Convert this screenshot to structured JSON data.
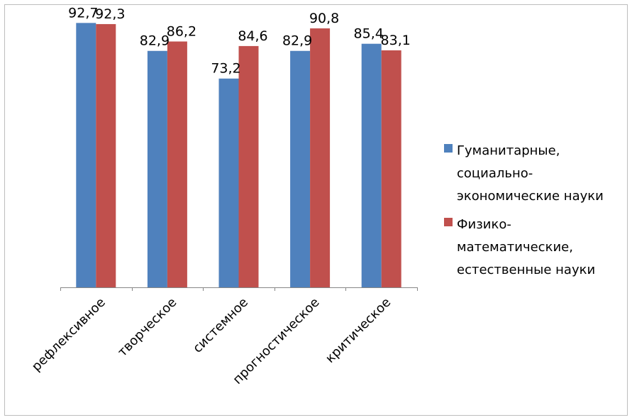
{
  "chart_data": {
    "type": "bar",
    "title": "",
    "xlabel": "",
    "ylabel": "",
    "ylim": [
      0,
      100
    ],
    "grid": false,
    "legend_position": "right",
    "categories": [
      "рефлексивное",
      "творческое",
      "системное",
      "прогностическое",
      "критическое"
    ],
    "series": [
      {
        "name_lines": [
          "Гуманитарные,",
          "социально-",
          "экономические науки"
        ],
        "color": "#4f81bd",
        "values": [
          92.7,
          82.9,
          73.2,
          82.9,
          85.4
        ],
        "labels": [
          "92,7",
          "82,9",
          "73,2",
          "82,9",
          "85,4"
        ]
      },
      {
        "name_lines": [
          "Физико-",
          "математические,",
          "естественные науки"
        ],
        "color": "#c0504d",
        "values": [
          92.3,
          86.2,
          84.6,
          90.8,
          83.1
        ],
        "labels": [
          "92,3",
          "86,2",
          "84,6",
          "90,8",
          "83,1"
        ]
      }
    ]
  }
}
